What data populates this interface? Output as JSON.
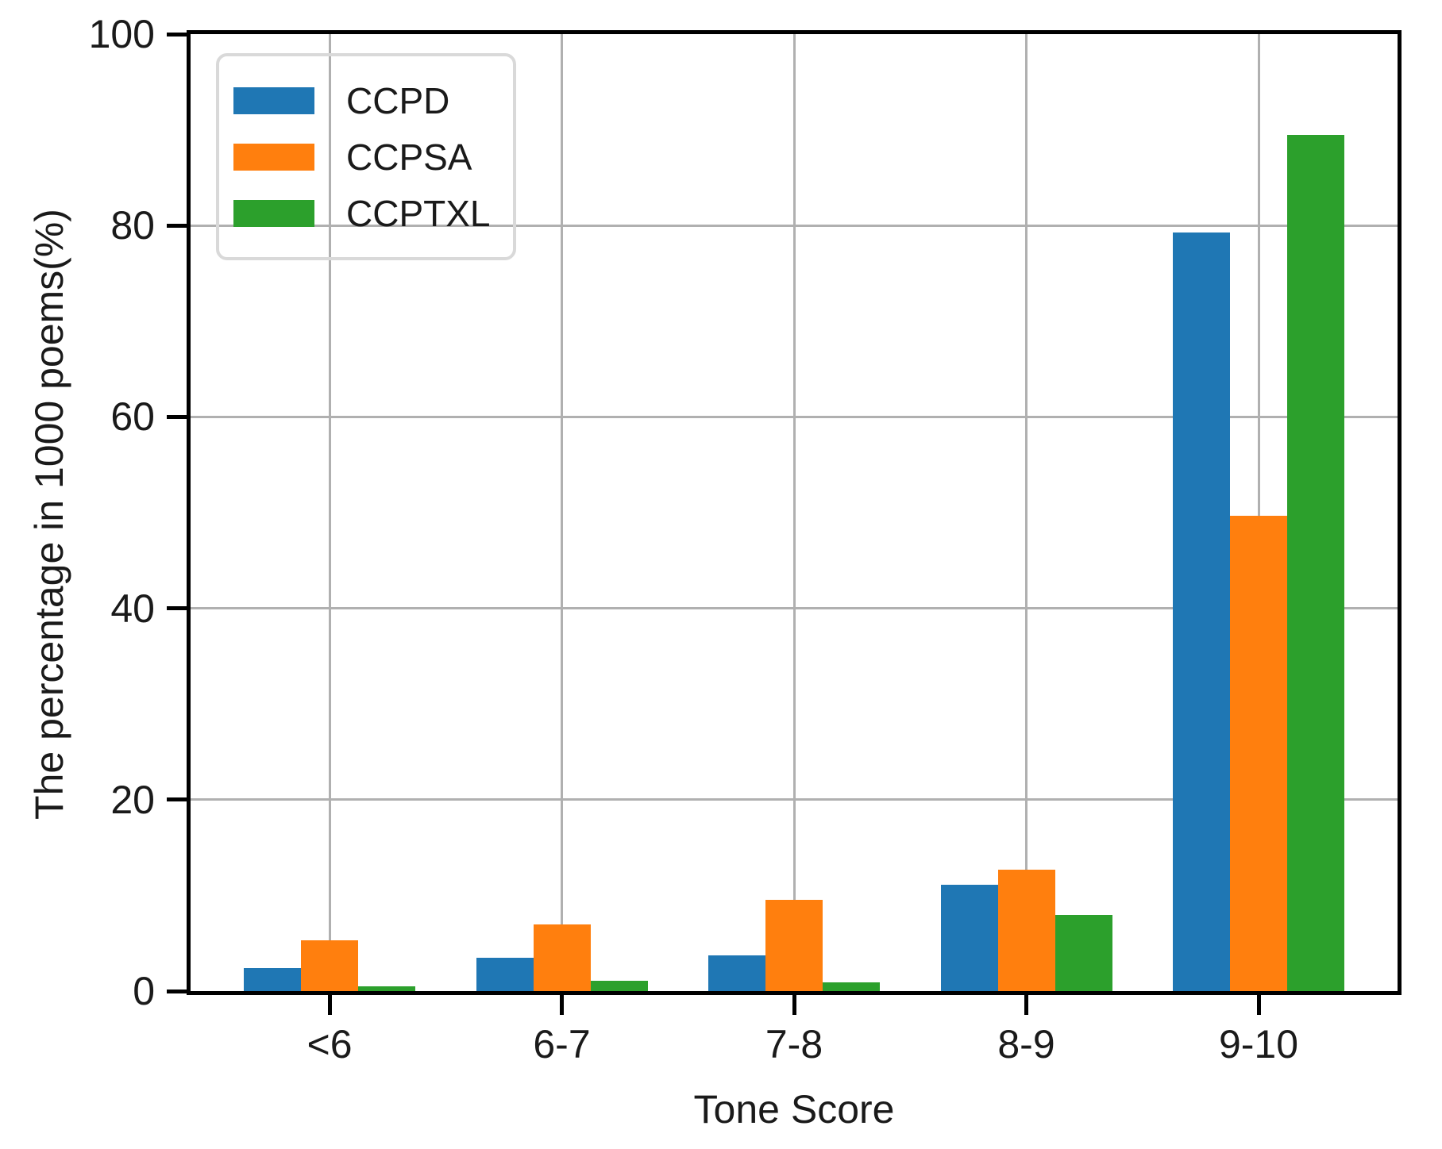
{
  "figure": {
    "background": "#ffffff",
    "text_color": "#1a1a1a",
    "grid_color": "#b0b0b0",
    "spine_color": "#000000"
  },
  "chart_data": {
    "type": "bar",
    "title": "",
    "xlabel": "Tone Score",
    "ylabel": "The percentage in 1000 poems(%)",
    "categories": [
      "<6",
      "6-7",
      "7-8",
      "8-9",
      "9-10"
    ],
    "series": [
      {
        "name": "CCPD",
        "color": "#1f77b4",
        "values": [
          2.4,
          3.5,
          3.7,
          11.1,
          79.3
        ]
      },
      {
        "name": "CCPSA",
        "color": "#ff7f0e",
        "values": [
          5.3,
          7.0,
          9.5,
          12.7,
          49.7
        ]
      },
      {
        "name": "CCPTXL",
        "color": "#2ca02c",
        "values": [
          0.5,
          1.1,
          0.9,
          8.0,
          89.5
        ]
      }
    ],
    "ylim": [
      0,
      100
    ],
    "yticks": [
      0,
      20,
      40,
      60,
      80,
      100
    ],
    "grid": true,
    "legend_position": "upper-left"
  }
}
